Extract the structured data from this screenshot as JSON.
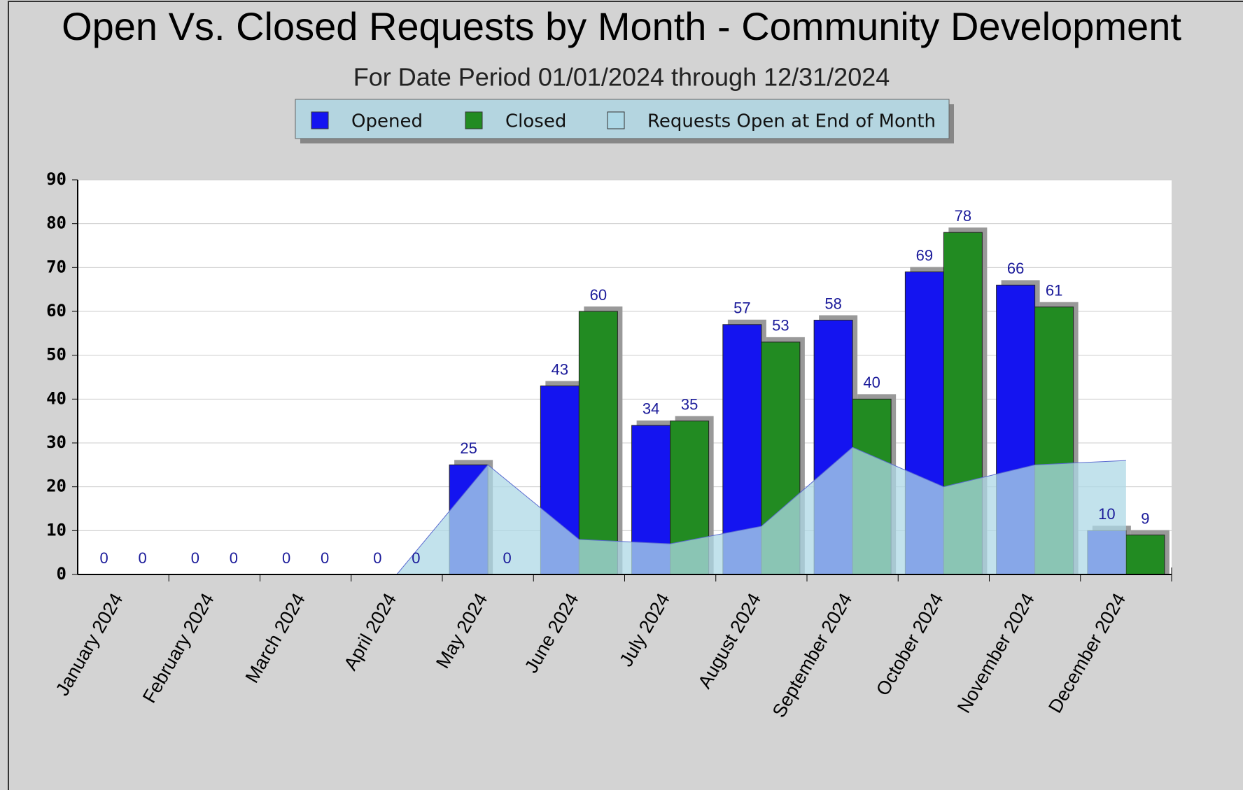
{
  "chart_data": {
    "type": "bar",
    "title": "Open Vs. Closed  Requests by Month - Community Development",
    "subtitle": "For Date Period 01/01/2024 through 12/31/2024",
    "categories": [
      "January 2024",
      "February 2024",
      "March 2024",
      "April 2024",
      "May 2024",
      "June 2024",
      "July 2024",
      "August 2024",
      "September 2024",
      "October 2024",
      "November 2024",
      "December 2024"
    ],
    "series": [
      {
        "name": "Opened",
        "color": "#1414f0",
        "values": [
          0,
          0,
          0,
          0,
          25,
          43,
          34,
          57,
          58,
          69,
          66,
          10
        ]
      },
      {
        "name": "Closed",
        "color": "#228b22",
        "values": [
          0,
          0,
          0,
          0,
          0,
          60,
          35,
          53,
          40,
          78,
          61,
          9
        ]
      },
      {
        "name": "Requests Open at End of Month",
        "color": "#add8e6",
        "type": "area",
        "values": [
          0,
          0,
          0,
          0,
          25,
          8,
          7,
          11,
          29,
          20,
          25,
          26
        ]
      }
    ],
    "ylim": [
      0,
      90
    ],
    "yticks": [
      0,
      10,
      20,
      30,
      40,
      50,
      60,
      70,
      80,
      90
    ],
    "grid": true,
    "legend": "top"
  }
}
